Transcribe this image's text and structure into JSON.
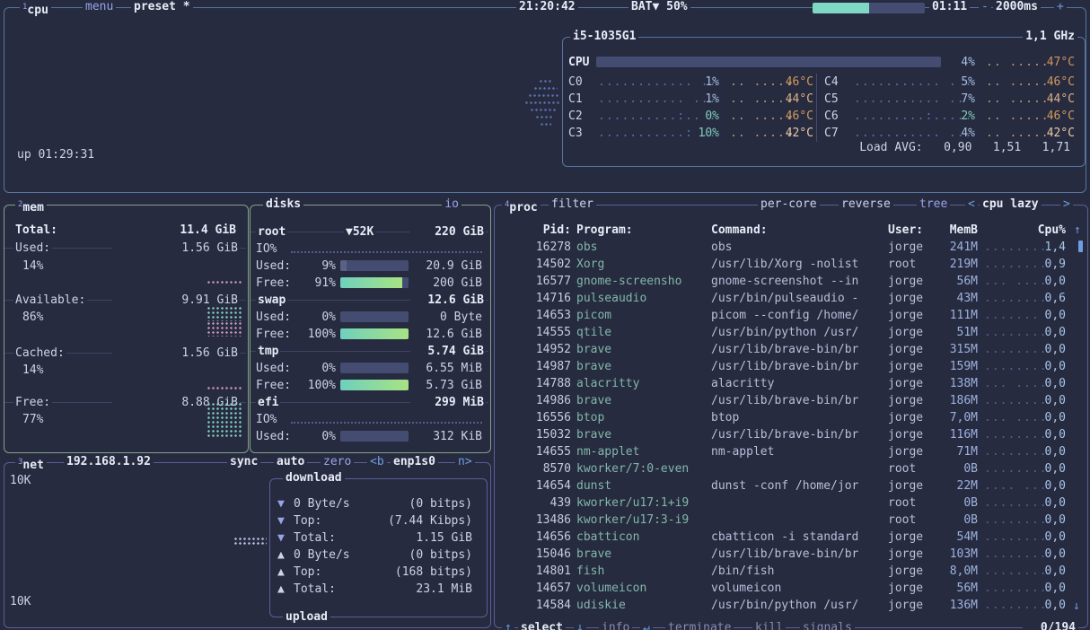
{
  "colors": {
    "background": "#262b3f",
    "cpu_border": "#56749f",
    "mem_border": "#85a18b",
    "net_border": "#5b5f96",
    "accent_lavender": "#98a3e8",
    "accent_blue": "#709de2",
    "battery_fill": "#7ed8c4",
    "meter_gradient_start": "#6fd0bd",
    "meter_gradient_end": "#a8e383",
    "temp_hot": "#d2935c",
    "temp_cool": "#e9c9a8",
    "process_name": "#83b7a9"
  },
  "topbar": {
    "cpu_num": "1",
    "cpu_title": "cpu",
    "menu": "menu",
    "preset": "preset *",
    "clock": "21:20:42",
    "battery_label": "BAT▼ 50%",
    "battery_pct": 50,
    "battery_time": "01:11",
    "interval_minus": "-",
    "interval": "2000ms",
    "interval_plus": "+"
  },
  "cpu_box": {
    "model": "i5-1035G1",
    "freq": "1,1 GHz",
    "total_label": "CPU",
    "total_pct": 4,
    "total_pct_label": "4%",
    "total_mini": ".. .....",
    "total_temp": "47°C",
    "cores": [
      {
        "id": "C0",
        "graph": "............ ..",
        "pct": "1%",
        "mini": ".. .....",
        "temp": "46°C"
      },
      {
        "id": "C1",
        "graph": "........... ...",
        "pct": "1%",
        "mini": ".. .....",
        "temp": "44°C"
      },
      {
        "id": "C2",
        "graph": "..........:.. .",
        "pct": "0%",
        "mini": ".. .....",
        "temp": "46°C"
      },
      {
        "id": "C3",
        "graph": "...........: ..",
        "pct": "10%",
        "mini": ".. .....",
        "temp": "42°C"
      },
      {
        "id": "C4",
        "graph": "........... . .",
        "pct": "5%",
        "mini": ".. .....",
        "temp": "46°C"
      },
      {
        "id": "C5",
        "graph": "........... ..",
        "pct": "7%",
        "mini": ".. .....",
        "temp": "44°C"
      },
      {
        "id": "C6",
        "graph": ".........:.....",
        "pct": "2%",
        "mini": ".. .....",
        "temp": "46°C"
      },
      {
        "id": "C7",
        "graph": "........... ...",
        "pct": "4%",
        "mini": ".. .....",
        "temp": "42°C"
      }
    ],
    "load_avg": "Load AVG:   0,90   1,51   1,71",
    "uptime": "up 01:29:31"
  },
  "mem": {
    "num": "2",
    "title": "mem",
    "total_label": "Total:",
    "total": "11.4 GiB",
    "used_label": "Used:",
    "used": "1.56 GiB",
    "used_pct": "14%",
    "avail_label": "Available:",
    "avail": "9.91 GiB",
    "avail_pct": "86%",
    "cached_label": "Cached:",
    "cached": "1.56 GiB",
    "cached_pct": "14%",
    "free_label": "Free:",
    "free": "8.88 GiB",
    "free_pct": "77%"
  },
  "disks": {
    "title": "disks",
    "io_title": "io",
    "root": {
      "name": "root",
      "activity": "▼52K",
      "size": "220 GiB",
      "io_label": "IO%",
      "used_label": "Used:",
      "used_pct": "9%",
      "used_pct_val": 9,
      "used": "20.9 GiB",
      "free_label": "Free:",
      "free_pct": "91%",
      "free_pct_val": 91,
      "free": "200 GiB"
    },
    "swap": {
      "name": "swap",
      "size": "12.6 GiB",
      "used_label": "Used:",
      "used_pct": "0%",
      "used_pct_val": 0,
      "used": "0 Byte",
      "free_label": "Free:",
      "free_pct": "100%",
      "free_pct_val": 100,
      "free": "12.6 GiB"
    },
    "tmp": {
      "name": "tmp",
      "size": "5.74 GiB",
      "used_label": "Used:",
      "used_pct": "0%",
      "used_pct_val": 0,
      "used": "6.55 MiB",
      "free_label": "Free:",
      "free_pct": "100%",
      "free_pct_val": 100,
      "free": "5.73 GiB"
    },
    "efi": {
      "name": "efi",
      "size": "299 MiB",
      "io_label": "IO%",
      "used_label": "Used:",
      "used_pct": "0%",
      "used_pct_val": 0,
      "used": "312 KiB"
    }
  },
  "net": {
    "num": "3",
    "title": "net",
    "ip": "192.168.1.92",
    "sync": "sync",
    "auto": "auto",
    "zero": "zero",
    "iface_pre": "<b",
    "iface": "enp1s0",
    "iface_post": "n>",
    "scale_top": "10K",
    "scale_bottom": "10K",
    "download_title": "download",
    "upload_title": "upload",
    "rows": [
      {
        "arrow": "▼",
        "label": "0 Byte/s",
        "value": "(0 bitps)"
      },
      {
        "arrow": "▼",
        "label": "Top:",
        "value": "(7.44 Kibps)"
      },
      {
        "arrow": "▼",
        "label": "Total:",
        "value": "1.15 GiB"
      },
      {
        "arrow": "▲",
        "label": "0 Byte/s",
        "value": "(0 bitps)"
      },
      {
        "arrow": "▲",
        "label": "Top:",
        "value": "(168 bitps)"
      },
      {
        "arrow": "▲",
        "label": "Total:",
        "value": "23.1 MiB"
      }
    ]
  },
  "proc": {
    "num": "4",
    "title": "proc",
    "filter": "filter",
    "per_core": "per-core",
    "reverse": "reverse",
    "tree": "tree",
    "sort_pre": "<",
    "sort": "cpu lazy",
    "sort_post": ">",
    "headers": {
      "pid": "Pid:",
      "program": "Program:",
      "command": "Command:",
      "user": "User:",
      "mem": "MemB",
      "cpu": "Cpu%",
      "sort_arrow": "↑"
    },
    "rows": [
      {
        "pid": "16278",
        "program": "obs",
        "command": "obs",
        "user": "jorge",
        "mem": "241M",
        "graph": "........",
        "cpu": "1,4"
      },
      {
        "pid": "14502",
        "program": "Xorg",
        "command": "/usr/lib/Xorg -nolist",
        "user": "root",
        "mem": "219M",
        "graph": "........",
        "cpu": "0,9"
      },
      {
        "pid": "16577",
        "program": "gnome-screensho",
        "command": "gnome-screenshot --in",
        "user": "jorge",
        "mem": "56M",
        "graph": "... ....",
        "cpu": "0,0"
      },
      {
        "pid": "14716",
        "program": "pulseaudio",
        "command": "/usr/bin/pulseaudio -",
        "user": "jorge",
        "mem": "43M",
        "graph": "........",
        "cpu": "0,6"
      },
      {
        "pid": "14653",
        "program": "picom",
        "command": "picom --config /home/",
        "user": "jorge",
        "mem": "111M",
        "graph": ".......",
        "cpu": "0,0"
      },
      {
        "pid": "14555",
        "program": "qtile",
        "command": "/usr/bin/python /usr/",
        "user": "jorge",
        "mem": "51M",
        "graph": "........",
        "cpu": "0,0"
      },
      {
        "pid": "14952",
        "program": "brave",
        "command": "/usr/lib/brave-bin/br",
        "user": "jorge",
        "mem": "315M",
        "graph": "........",
        "cpu": "0,0"
      },
      {
        "pid": "14987",
        "program": "brave",
        "command": "/usr/lib/brave-bin/br",
        "user": "jorge",
        "mem": "159M",
        "graph": "........",
        "cpu": "0,0"
      },
      {
        "pid": "14788",
        "program": "alacritty",
        "command": "alacritty",
        "user": "jorge",
        "mem": "138M",
        "graph": "... ....",
        "cpu": "0,0"
      },
      {
        "pid": "14986",
        "program": "brave",
        "command": "/usr/lib/brave-bin/br",
        "user": "jorge",
        "mem": "186M",
        "graph": "........",
        "cpu": "0,0"
      },
      {
        "pid": "16556",
        "program": "btop",
        "command": "btop",
        "user": "jorge",
        "mem": "7,0M",
        "graph": "... ....",
        "cpu": "0,0"
      },
      {
        "pid": "15032",
        "program": "brave",
        "command": "/usr/lib/brave-bin/br",
        "user": "jorge",
        "mem": "116M",
        "graph": "........",
        "cpu": "0,0"
      },
      {
        "pid": "14655",
        "program": "nm-applet",
        "command": "nm-applet",
        "user": "jorge",
        "mem": "71M",
        "graph": "........",
        "cpu": "0,0"
      },
      {
        "pid": "8570",
        "program": "kworker/7:0-even",
        "command": "",
        "user": "root",
        "mem": "0B",
        "graph": "........",
        "cpu": "0,0"
      },
      {
        "pid": "14654",
        "program": "dunst",
        "command": "dunst -conf /home/jor",
        "user": "jorge",
        "mem": "22M",
        "graph": ".... ...",
        "cpu": "0,0"
      },
      {
        "pid": "439",
        "program": "kworker/u17:1+i9",
        "command": "",
        "user": "root",
        "mem": "0B",
        "graph": "........",
        "cpu": "0,0"
      },
      {
        "pid": "13486",
        "program": "kworker/u17:3-i9",
        "command": "",
        "user": "root",
        "mem": "0B",
        "graph": "........",
        "cpu": "0,0"
      },
      {
        "pid": "14656",
        "program": "cbatticon",
        "command": "cbatticon -i standard",
        "user": "jorge",
        "mem": "54M",
        "graph": "........",
        "cpu": "0,0"
      },
      {
        "pid": "15046",
        "program": "brave",
        "command": "/usr/lib/brave-bin/br",
        "user": "jorge",
        "mem": "103M",
        "graph": "........",
        "cpu": "0,0"
      },
      {
        "pid": "14801",
        "program": "fish",
        "command": "/bin/fish",
        "user": "jorge",
        "mem": "8,0M",
        "graph": "........",
        "cpu": "0,0"
      },
      {
        "pid": "14657",
        "program": "volumeicon",
        "command": "volumeicon",
        "user": "jorge",
        "mem": "56M",
        "graph": "........",
        "cpu": "0,0"
      },
      {
        "pid": "14584",
        "program": "udiskie",
        "command": "/usr/bin/python /usr/",
        "user": "jorge",
        "mem": "136M",
        "graph": "........",
        "cpu": "0,0"
      }
    ],
    "scroll_down": "↓",
    "footer": {
      "up": "↑",
      "select": "select",
      "down": "↓",
      "info": "info",
      "enter": "↵",
      "terminate": "terminate",
      "kill": "kill",
      "signals": "signals",
      "count": "0/194"
    }
  }
}
